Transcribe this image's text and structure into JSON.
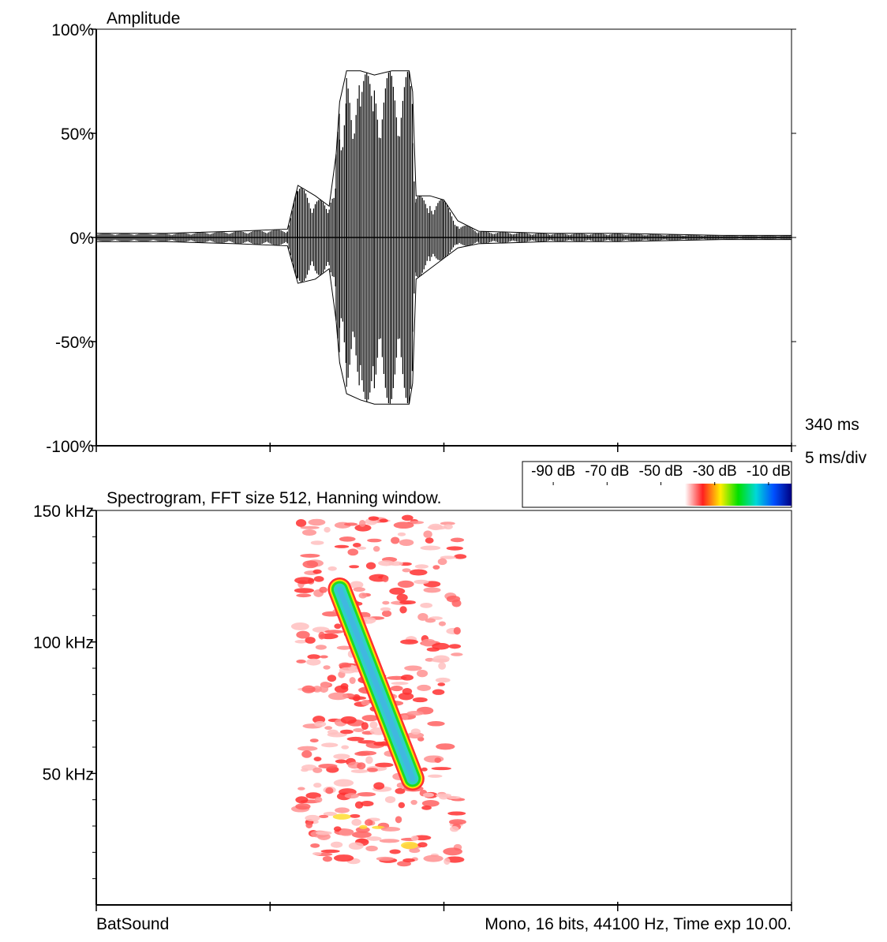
{
  "chart_data": [
    {
      "type": "waveform",
      "title": "Amplitude",
      "time_label": "340 ms",
      "division_label": "5 ms/div",
      "xlim": [
        320,
        340
      ],
      "xticks": [
        320,
        325,
        330,
        335,
        340
      ],
      "ylim": [
        -100,
        100
      ],
      "yticks": [
        {
          "value": 100,
          "label": "100%"
        },
        {
          "value": 50,
          "label": "50%"
        },
        {
          "value": 0,
          "label": "0%"
        },
        {
          "value": -50,
          "label": "-50%"
        },
        {
          "value": -100,
          "label": "-100%"
        }
      ],
      "x": [
        320,
        322,
        324,
        325.5,
        325.8,
        326.3,
        326.7,
        326.9,
        327.0,
        327.2,
        327.6,
        328.0,
        328.5,
        329.0,
        329.1,
        329.2,
        329.6,
        330.0,
        330.4,
        331,
        333,
        335,
        338,
        340
      ],
      "series": [
        {
          "color": "#000000",
          "values": [
            2,
            2,
            3,
            4,
            25,
            20,
            15,
            40,
            65,
            80,
            80,
            78,
            80,
            80,
            70,
            20,
            20,
            18,
            8,
            3,
            2,
            2,
            1,
            1
          ]
        },
        {
          "color": "#000000",
          "values": [
            -2,
            -2,
            -3,
            -4,
            -22,
            -20,
            -15,
            -40,
            -60,
            -75,
            -78,
            -80,
            -80,
            -80,
            -70,
            -20,
            -15,
            -10,
            -5,
            -3,
            -2,
            -2,
            -1,
            -1
          ]
        }
      ]
    },
    {
      "type": "spectrogram",
      "title": "Spectrogram, FFT size 512, Hanning window.",
      "xlim": [
        320,
        340
      ],
      "xticks": [
        320,
        325,
        330,
        335,
        340
      ],
      "ylim": [
        0,
        150
      ],
      "yticks": [
        {
          "value": 150,
          "label": "150 kHz"
        },
        {
          "value": 100,
          "label": "100 kHz"
        },
        {
          "value": 50,
          "label": "50 kHz"
        }
      ],
      "minor_yticks": [
        10,
        20,
        30,
        40,
        60,
        70,
        80,
        90,
        110,
        120,
        130,
        140
      ],
      "call": {
        "x": [
          327.0,
          329.1
        ],
        "values": [
          120,
          48
        ]
      },
      "colorbar": {
        "clim": [
          -100,
          0
        ],
        "ticks": [
          {
            "value": -90,
            "label": "-90 dB"
          },
          {
            "value": -70,
            "label": "-70 dB"
          },
          {
            "value": -50,
            "label": "-50 dB"
          },
          {
            "value": -30,
            "label": "-30 dB"
          },
          {
            "value": -10,
            "label": "-10 dB"
          }
        ],
        "colors": [
          "#ffffff",
          "#ff2020",
          "#ffee00",
          "#00e000",
          "#00d8d8",
          "#0050ff",
          "#000080"
        ]
      }
    }
  ],
  "footer": {
    "left": "BatSound",
    "right": "Mono, 16 bits, 44100 Hz, Time exp 10.00."
  }
}
